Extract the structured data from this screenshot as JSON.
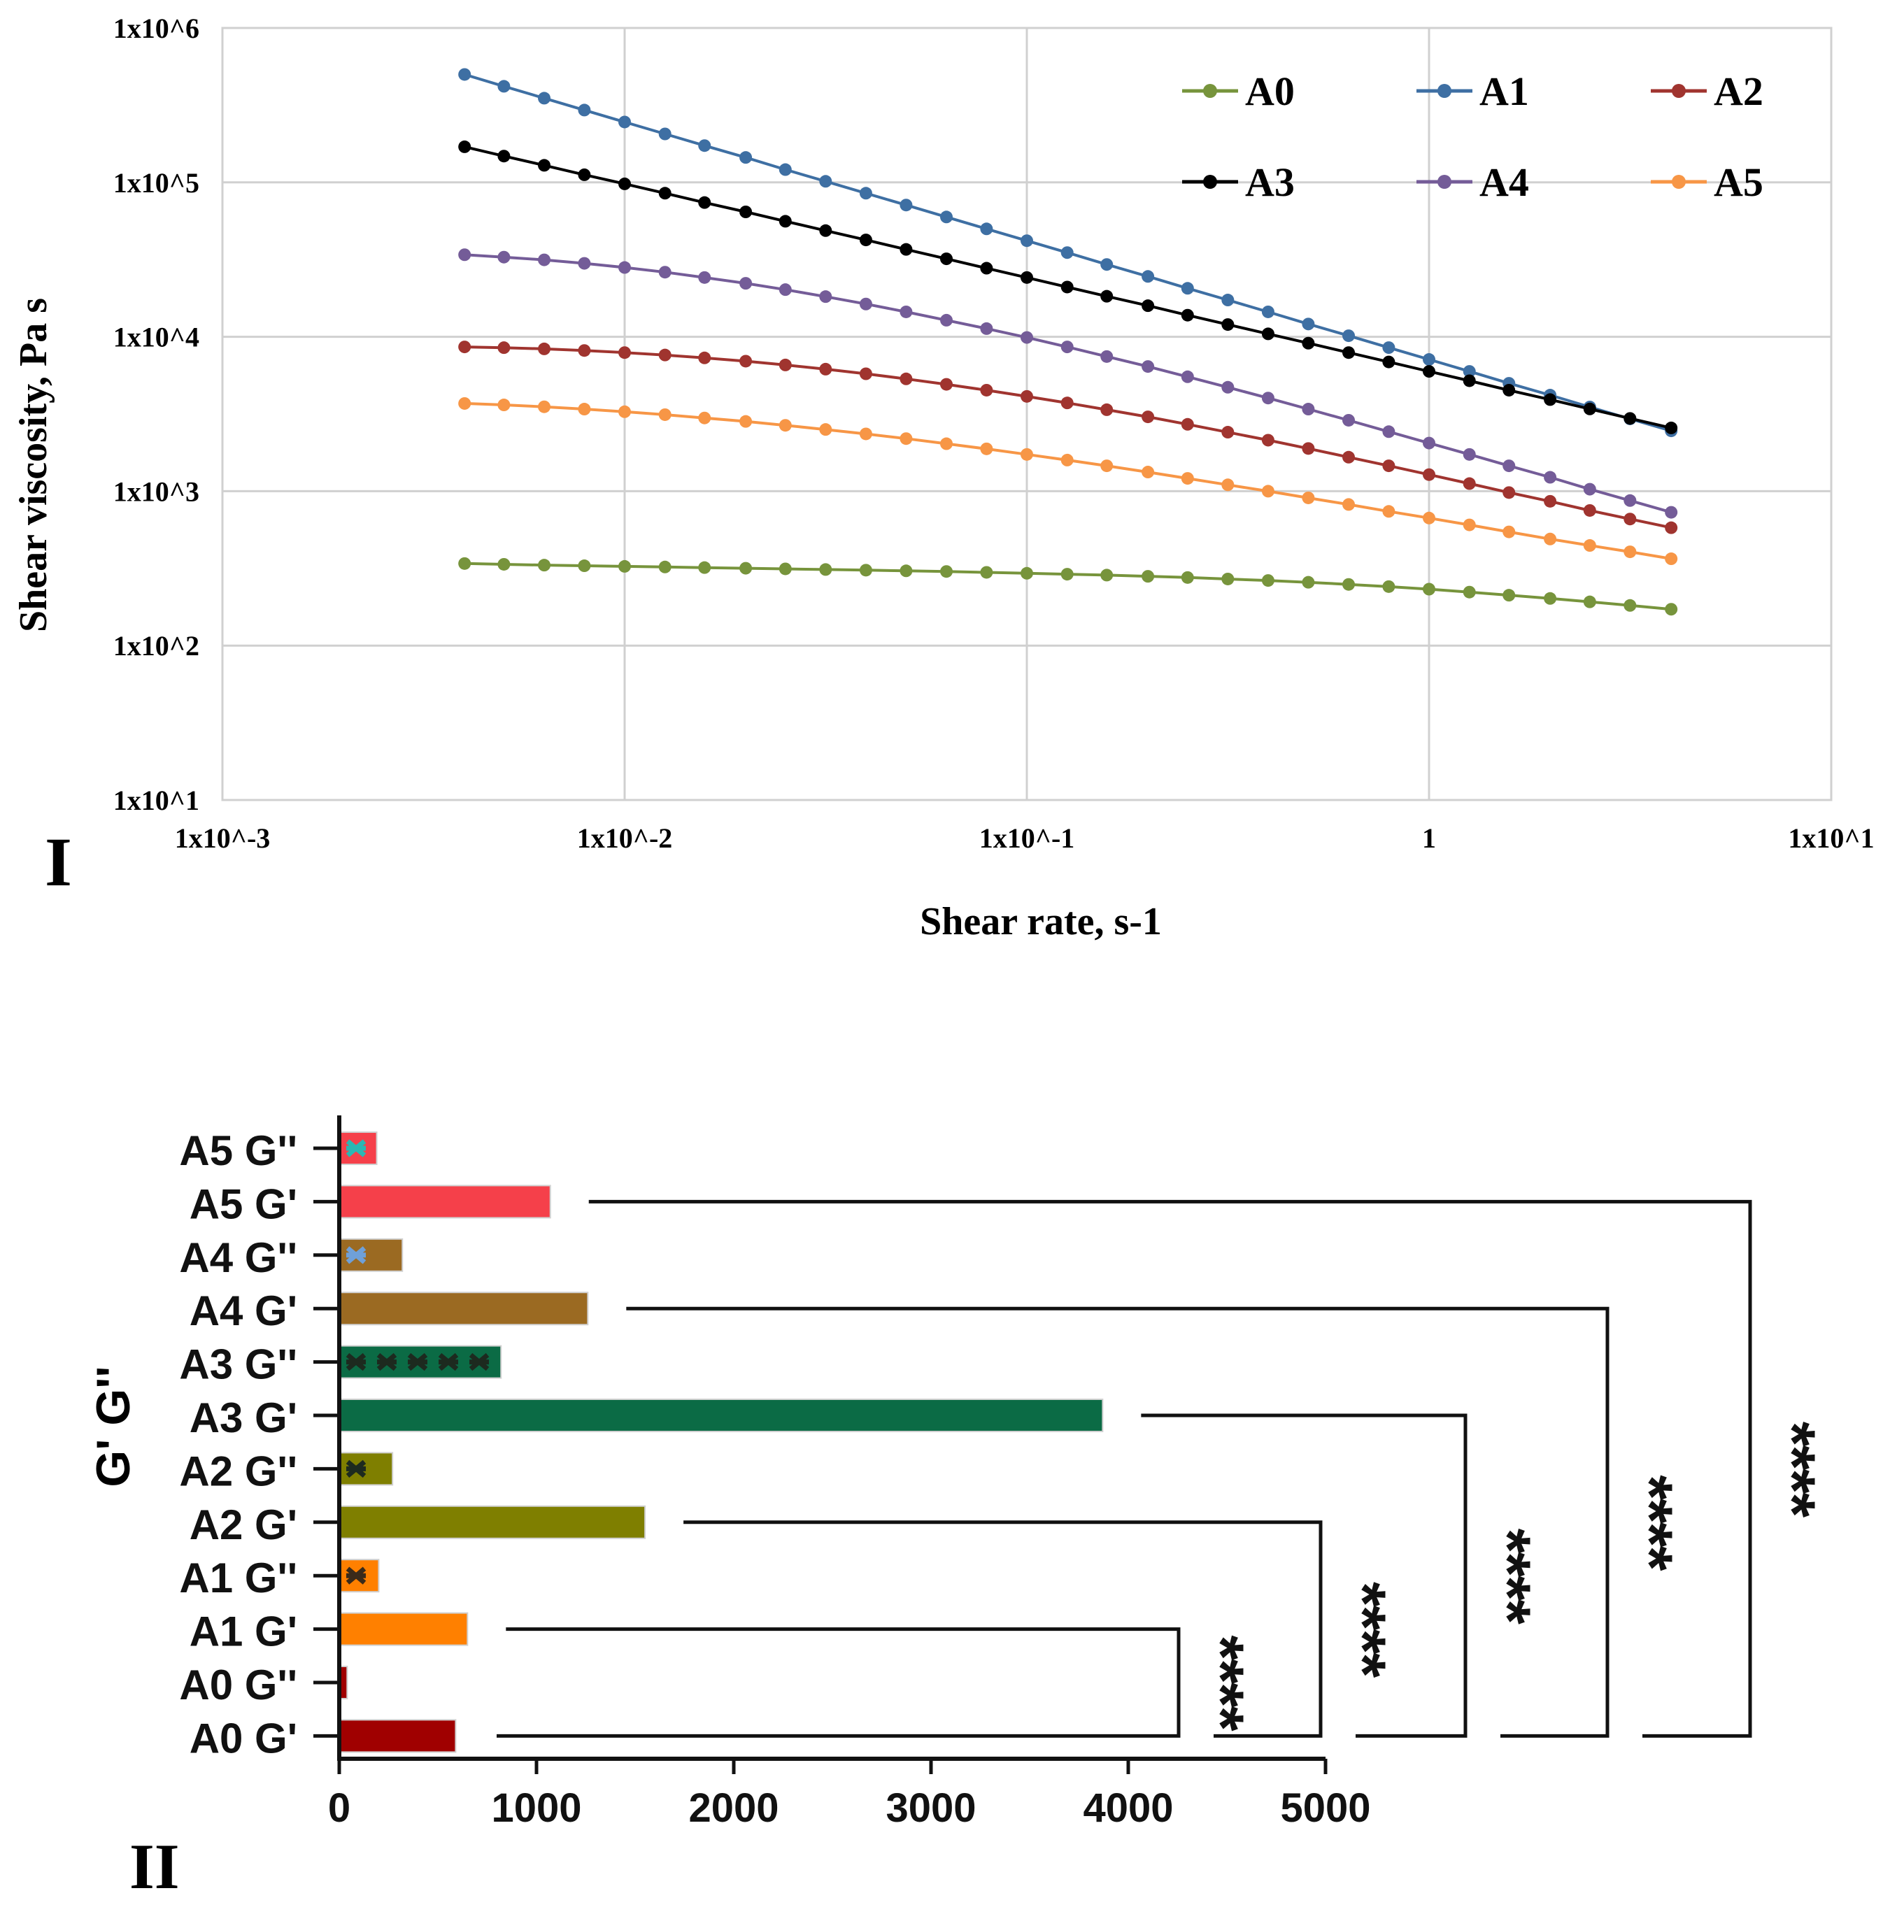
{
  "panel_labels": {
    "top": "I",
    "bottom": "II"
  },
  "chart_data": [
    {
      "type": "line",
      "title": "",
      "xlabel": "Shear rate, s-1",
      "ylabel": "Shear viscosity, Pa s",
      "x_scale": "log",
      "y_scale": "log",
      "xlim": [
        0.001,
        10
      ],
      "ylim": [
        10,
        1000000
      ],
      "x_ticks": [
        {
          "value": 0.001,
          "label": "1x10^-3"
        },
        {
          "value": 0.01,
          "label": "1x10^-2"
        },
        {
          "value": 0.1,
          "label": "1x10^-1"
        },
        {
          "value": 1,
          "label": "1"
        },
        {
          "value": 10,
          "label": "1x10^1"
        }
      ],
      "y_ticks": [
        {
          "value": 10,
          "label": "1x10^1"
        },
        {
          "value": 100,
          "label": "1x10^2"
        },
        {
          "value": 1000,
          "label": "1x10^3"
        },
        {
          "value": 10000,
          "label": "1x10^4"
        },
        {
          "value": 100000,
          "label": "1x10^5"
        },
        {
          "value": 1000000,
          "label": "1x10^6"
        }
      ],
      "grid": true,
      "legend_position": "top-right",
      "x": [
        0.004,
        0.00501,
        0.00631,
        0.00794,
        0.01,
        0.0126,
        0.0158,
        0.02,
        0.0251,
        0.0316,
        0.0398,
        0.0501,
        0.0631,
        0.0794,
        0.1,
        0.126,
        0.158,
        0.2,
        0.251,
        0.316,
        0.398,
        0.501,
        0.631,
        0.794,
        1.0,
        1.26,
        1.58,
        2.0,
        2.51,
        3.16,
        4.0
      ],
      "series": [
        {
          "name": "A0",
          "color": "#77943c",
          "values": [
            340,
            336,
            332,
            329,
            326,
            323,
            320,
            317,
            314,
            311,
            308,
            305,
            302,
            298,
            294,
            290,
            286,
            281,
            276,
            270,
            264,
            257,
            249,
            241,
            232,
            222,
            212,
            202,
            192,
            182,
            172
          ]
        },
        {
          "name": "A1",
          "color": "#3e6fa3",
          "values": [
            500000,
            419000,
            351000,
            294000,
            246000,
            206000,
            173000,
            145000,
            121000,
            101600,
            85100,
            71300,
            59700,
            50000,
            41900,
            35100,
            29400,
            24600,
            20600,
            17300,
            14500,
            12100,
            10160,
            8510,
            7130,
            5970,
            5000,
            4190,
            3510,
            2940,
            2460
          ]
        },
        {
          "name": "A2",
          "color": "#a0342f",
          "values": [
            8600,
            8500,
            8350,
            8150,
            7900,
            7620,
            7300,
            6950,
            6570,
            6170,
            5760,
            5340,
            4920,
            4510,
            4110,
            3730,
            3370,
            3030,
            2710,
            2410,
            2140,
            1890,
            1660,
            1460,
            1280,
            1120,
            980,
            860,
            750,
            660,
            580
          ]
        },
        {
          "name": "A3",
          "color": "#000000",
          "values": [
            170000,
            148000,
            129000,
            112000,
            97800,
            85100,
            74000,
            64400,
            56000,
            48700,
            42400,
            36800,
            32000,
            27800,
            24200,
            21000,
            18300,
            15900,
            13800,
            12000,
            10450,
            9090,
            7900,
            6870,
            5970,
            5190,
            4510,
            3920,
            3410,
            2960,
            2570
          ]
        },
        {
          "name": "A4",
          "color": "#745c98",
          "values": [
            34000,
            32800,
            31500,
            29900,
            28100,
            26200,
            24200,
            22200,
            20200,
            18200,
            16300,
            14500,
            12800,
            11300,
            9900,
            8600,
            7450,
            6420,
            5510,
            4710,
            4010,
            3400,
            2880,
            2430,
            2050,
            1730,
            1460,
            1230,
            1030,
            870,
            730
          ]
        },
        {
          "name": "A5",
          "color": "#f79646",
          "values": [
            3700,
            3620,
            3520,
            3400,
            3270,
            3130,
            2980,
            2830,
            2670,
            2510,
            2350,
            2190,
            2030,
            1880,
            1730,
            1590,
            1460,
            1330,
            1210,
            1100,
            1000,
            905,
            820,
            740,
            670,
            605,
            545,
            490,
            445,
            405,
            365
          ]
        }
      ]
    },
    {
      "type": "bar",
      "orientation": "horizontal",
      "title": "",
      "xlabel": "",
      "ylabel": "G' G''",
      "xlim": [
        0,
        5000
      ],
      "x_ticks": [
        0,
        1000,
        2000,
        3000,
        4000,
        5000
      ],
      "categories": [
        "A5 G''",
        "A5 G'",
        "A4 G''",
        "A4 G'",
        "A3 G''",
        "A3 G'",
        "A2 G''",
        "A2 G'",
        "A1 G''",
        "A1 G'",
        "A0 G''",
        "A0 G'"
      ],
      "values": [
        190,
        1070,
        320,
        1260,
        820,
        3870,
        270,
        1550,
        200,
        650,
        40,
        590
      ],
      "colors": [
        "#f5404a",
        "#f5404a",
        "#9b6a22",
        "#9b6a22",
        "#0b6b45",
        "#0b6b45",
        "#7f7f00",
        "#7f7f00",
        "#ff8000",
        "#ff8000",
        "#a00000",
        "#a00000"
      ],
      "marker_colors": [
        "#2bb7b3",
        null,
        "#6fa0d8",
        null,
        "#1d2a1f",
        null,
        "#1d2a1f",
        null,
        "#3a2a1a",
        null,
        null,
        null
      ],
      "significance": [
        {
          "from": "A0 G'",
          "to": "A1 G'",
          "label": "****"
        },
        {
          "from": "A0 G'",
          "to": "A2 G'",
          "label": "****"
        },
        {
          "from": "A0 G'",
          "to": "A3 G'",
          "label": "****"
        },
        {
          "from": "A0 G'",
          "to": "A4 G'",
          "label": "****"
        },
        {
          "from": "A0 G'",
          "to": "A5 G'",
          "label": "****"
        }
      ]
    }
  ]
}
